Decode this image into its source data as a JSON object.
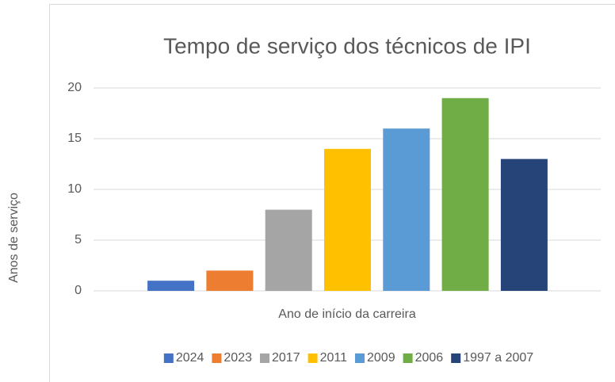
{
  "chart_data": {
    "type": "bar",
    "title": "Tempo de serviço dos técnicos de IPI",
    "x_label": "Ano de início da carreira",
    "y_label": "Anos de serviço",
    "categories": [
      null
    ],
    "series": [
      {
        "name": "2024",
        "color": "#4472c4",
        "values": [
          1
        ]
      },
      {
        "name": "2023",
        "color": "#ed7d31",
        "values": [
          2
        ]
      },
      {
        "name": "2017",
        "color": "#a5a5a5",
        "values": [
          8
        ]
      },
      {
        "name": "2011",
        "color": "#ffc000",
        "values": [
          14
        ]
      },
      {
        "name": "2009",
        "color": "#5b9bd5",
        "values": [
          16
        ]
      },
      {
        "name": "2006",
        "color": "#70ad47",
        "values": [
          19
        ]
      },
      {
        "name": "1997 a 2007",
        "color": "#264478",
        "values": [
          13
        ]
      }
    ],
    "ylim": [
      0,
      20
    ],
    "yticks": [
      0,
      5,
      10,
      15,
      20
    ],
    "grid": true,
    "legend": "bottom"
  }
}
